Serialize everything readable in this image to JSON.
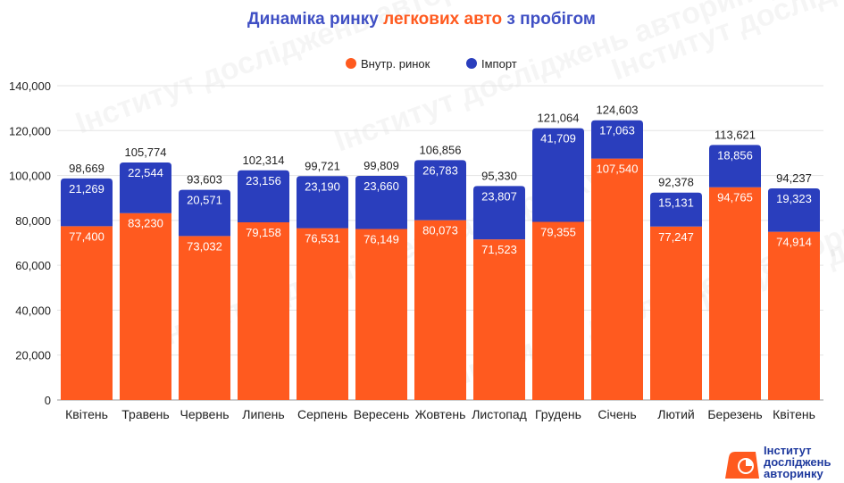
{
  "chart_data": {
    "type": "bar",
    "stacked": true,
    "title_parts": [
      {
        "text": "Динаміка ринку ",
        "color": "#3f4fc4"
      },
      {
        "text": "легкових авто",
        "color": "#ff5a1f"
      },
      {
        "text": " з пробігом",
        "color": "#3f4fc4"
      }
    ],
    "categories": [
      "Квітень",
      "Травень",
      "Червень",
      "Липень",
      "Серпень",
      "Вересень",
      "Жовтень",
      "Листопад",
      "Грудень",
      "Січень",
      "Лютий",
      "Березень",
      "Квітень"
    ],
    "series": [
      {
        "name": "Внутр. ринок",
        "color": "#ff5a1f",
        "values": [
          77400,
          83230,
          73032,
          79158,
          76531,
          76149,
          80073,
          71523,
          79355,
          107540,
          77247,
          94765,
          74914
        ]
      },
      {
        "name": "Імпорт",
        "color": "#2a3ebd",
        "values": [
          21269,
          22544,
          20571,
          23156,
          23190,
          23660,
          26783,
          23807,
          41709,
          17063,
          15131,
          18856,
          19323
        ]
      }
    ],
    "totals": [
      98669,
      105774,
      93603,
      102314,
      99721,
      99809,
      106856,
      95330,
      121064,
      124603,
      92378,
      113621,
      94237
    ],
    "ylim": [
      0,
      140000
    ],
    "yticks": [
      0,
      20000,
      40000,
      60000,
      80000,
      100000,
      120000,
      140000
    ],
    "grid": true,
    "legend_position": "top-center"
  },
  "watermark": {
    "text": "Інститут досліджень авторинку"
  },
  "logo": {
    "lines": [
      "Інститут",
      "досліджень",
      "авторинку"
    ],
    "color": "#1f3a9e",
    "accent": "#ff5a1f"
  }
}
